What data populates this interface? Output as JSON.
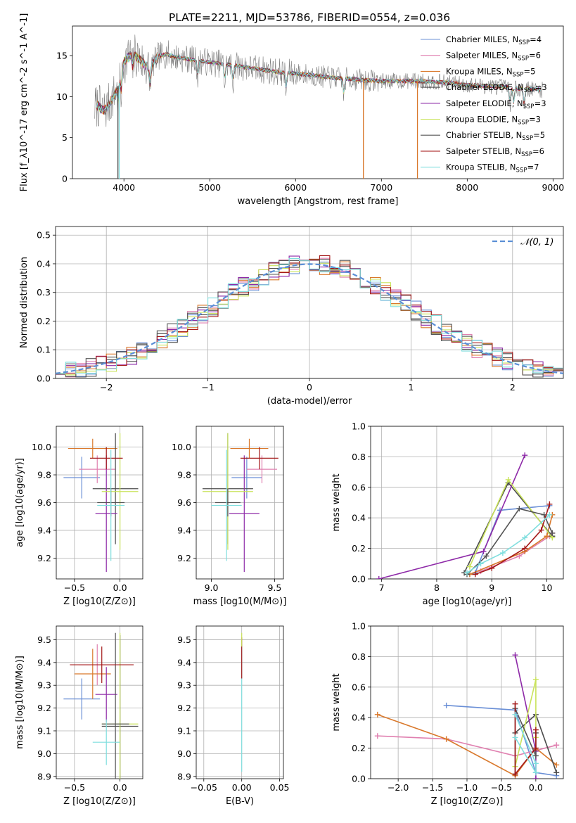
{
  "figure": {
    "title": "PLATE=2211, MJD=53786, FIBERID=0554, z=0.036"
  },
  "colors": {
    "Chabrier MILES": "#6a8fd6",
    "Salpeter MILES": "#e080b0",
    "Kroupa MILES": "#d9782b",
    "Chabrier ELODIE": "#4c4c4c",
    "Salpeter ELODIE": "#8e2aa8",
    "Kroupa ELODIE": "#c9e35a",
    "Chabrier STELIB": "#555555",
    "Salpeter STELIB": "#a41818",
    "Kroupa STELIB": "#7fdede",
    "gauss": "#5b8fd6"
  },
  "chart_data": [
    {
      "id": "spectrum",
      "type": "line",
      "xlabel": "wavelength [Angstrom, rest frame]",
      "ylabel": "Flux [f_λ10^-17 erg cm^-2 s^-1 A^-1]",
      "xlim": [
        3400,
        9120
      ],
      "ylim": [
        0,
        18.6
      ],
      "xticks": [
        4000,
        5000,
        6000,
        7000,
        8000,
        9000
      ],
      "yticks": [
        0,
        5,
        10,
        15
      ],
      "legend_position": "top-right",
      "legend": [
        {
          "name": "Chabrier MILES",
          "nssp": "4"
        },
        {
          "name": "Salpeter MILES",
          "nssp": "6"
        },
        {
          "name": "Kroupa MILES",
          "nssp": "5"
        },
        {
          "name": "Chabrier ELODIE",
          "nssp": "3"
        },
        {
          "name": "Salpeter ELODIE",
          "nssp": "3"
        },
        {
          "name": "Kroupa ELODIE",
          "nssp": "3"
        },
        {
          "name": "Chabrier STELIB",
          "nssp": "5"
        },
        {
          "name": "Salpeter STELIB",
          "nssp": "6"
        },
        {
          "name": "Kroupa STELIB",
          "nssp": "7"
        }
      ],
      "continuum": {
        "x": [
          3650,
          3700,
          3750,
          3800,
          3850,
          3900,
          3950,
          4000,
          4100,
          4200,
          4300,
          4400,
          4500,
          4600,
          4800,
          5000,
          5200,
          5400,
          5600,
          5800,
          6000,
          6200,
          6400,
          6600,
          6800,
          7000,
          7200,
          7400,
          7600,
          7800,
          8000,
          8200,
          8400,
          8600,
          8800,
          8880
        ],
        "y": [
          8.7,
          8.9,
          8.3,
          8.6,
          9.5,
          10.5,
          11.8,
          14.2,
          15.4,
          14.3,
          13.4,
          14.9,
          15.2,
          14.8,
          14.5,
          14.2,
          13.9,
          13.6,
          13.3,
          13.0,
          12.8,
          12.6,
          12.3,
          12.2,
          12.0,
          11.9,
          11.9,
          11.9,
          11.8,
          11.7,
          11.4,
          11.3,
          11.2,
          11.0,
          10.9,
          10.8
        ]
      },
      "absorption_lines": [
        3934,
        3969,
        4102,
        4305,
        4861,
        5175,
        5270,
        5890,
        6563,
        8498,
        8542,
        8662
      ],
      "dropouts": [
        {
          "x": 3930,
          "series": "Chabrier ELODIE"
        },
        {
          "x": 3945,
          "series": "Kroupa STELIB"
        },
        {
          "x": 6790,
          "series": "Kroupa MILES"
        },
        {
          "x": 7420,
          "series": "Kroupa MILES"
        }
      ]
    },
    {
      "id": "residuals",
      "type": "histogram",
      "xlabel": "(data-model)/error",
      "ylabel": "Normed distribution",
      "xlim": [
        -2.5,
        2.5
      ],
      "ylim": [
        0,
        0.53
      ],
      "xticks": [
        -2,
        -1,
        0,
        1,
        2
      ],
      "yticks": [
        0,
        0.1,
        0.2,
        0.3,
        0.4,
        0.5
      ],
      "bin_width": 0.1,
      "reference_curve": {
        "label": "𝒩(0, 1)",
        "style": "dashed"
      },
      "legend_position": "top-right"
    },
    {
      "id": "age_vs_Z",
      "type": "errorbar",
      "xlabel": "Z [log10(Z/Z⊙)]",
      "ylabel": "age  [log10(age/yr)]",
      "xlim": [
        -0.7,
        0.25
      ],
      "ylim": [
        9.05,
        10.15
      ],
      "xticks": [
        -0.5,
        0.0
      ],
      "yticks": [
        9.2,
        9.4,
        9.6,
        9.8,
        10.0
      ],
      "points": [
        {
          "series": "Chabrier MILES",
          "x": -0.42,
          "xerr": 0.2,
          "y": 9.78,
          "yerr": 0.15
        },
        {
          "series": "Salpeter MILES",
          "x": -0.25,
          "xerr": 0.2,
          "y": 9.84,
          "yerr": 0.1
        },
        {
          "series": "Kroupa MILES",
          "x": -0.3,
          "xerr": 0.27,
          "y": 9.99,
          "yerr": 0.07
        },
        {
          "series": "Chabrier ELODIE",
          "x": -0.05,
          "xerr": 0.25,
          "y": 9.7,
          "yerr": 0.4
        },
        {
          "series": "Salpeter ELODIE",
          "x": -0.15,
          "xerr": 0.12,
          "y": 9.52,
          "yerr": 0.42
        },
        {
          "series": "Kroupa ELODIE",
          "x": 0.0,
          "xerr": 0.2,
          "y": 9.68,
          "yerr": 0.42
        },
        {
          "series": "Chabrier STELIB",
          "x": -0.1,
          "xerr": 0.15,
          "y": 9.6,
          "yerr": 0.1
        },
        {
          "series": "Salpeter STELIB",
          "x": -0.15,
          "xerr": 0.18,
          "y": 9.92,
          "yerr": 0.08
        },
        {
          "series": "Kroupa STELIB",
          "x": -0.1,
          "xerr": 0.15,
          "y": 9.58,
          "yerr": 0.4
        }
      ]
    },
    {
      "id": "age_vs_mass",
      "type": "errorbar",
      "xlabel": "mass [log10(M/M⊙)]",
      "ylabel": "",
      "xlim": [
        8.88,
        9.57
      ],
      "ylim": [
        9.05,
        10.15
      ],
      "xticks": [
        9.0,
        9.5
      ],
      "yticks": [
        9.2,
        9.4,
        9.6,
        9.8,
        10.0
      ],
      "points": [
        {
          "series": "Chabrier MILES",
          "x": 9.28,
          "xerr": 0.12,
          "y": 9.78,
          "yerr": 0.15
        },
        {
          "series": "Salpeter MILES",
          "x": 9.4,
          "xerr": 0.12,
          "y": 9.84,
          "yerr": 0.1
        },
        {
          "series": "Kroupa MILES",
          "x": 9.3,
          "xerr": 0.15,
          "y": 9.99,
          "yerr": 0.07
        },
        {
          "series": "Chabrier ELODIE",
          "x": 9.13,
          "xerr": 0.2,
          "y": 9.7,
          "yerr": 0.4
        },
        {
          "series": "Salpeter ELODIE",
          "x": 9.26,
          "xerr": 0.12,
          "y": 9.52,
          "yerr": 0.42
        },
        {
          "series": "Kroupa ELODIE",
          "x": 9.13,
          "xerr": 0.2,
          "y": 9.68,
          "yerr": 0.42
        },
        {
          "series": "Chabrier STELIB",
          "x": 9.13,
          "xerr": 0.1,
          "y": 9.6,
          "yerr": 0.1
        },
        {
          "series": "Salpeter STELIB",
          "x": 9.38,
          "xerr": 0.15,
          "y": 9.92,
          "yerr": 0.08
        },
        {
          "series": "Kroupa STELIB",
          "x": 9.12,
          "xerr": 0.12,
          "y": 9.58,
          "yerr": 0.4
        }
      ]
    },
    {
      "id": "weight_vs_age",
      "type": "line",
      "xlabel": "age  [log10(age/yr)]",
      "ylabel": "mass weight",
      "xlim": [
        6.8,
        10.3
      ],
      "ylim": [
        0,
        1.0
      ],
      "xticks": [
        7,
        8,
        9,
        10
      ],
      "yticks": [
        0,
        0.2,
        0.4,
        0.6,
        0.8,
        1.0
      ],
      "series": [
        {
          "name": "Chabrier MILES",
          "x": [
            8.6,
            8.7,
            9.15,
            10.05
          ],
          "y": [
            0.03,
            0.04,
            0.45,
            0.48
          ]
        },
        {
          "name": "Salpeter MILES",
          "x": [
            8.8,
            9.5,
            10.05,
            10.1
          ],
          "y": [
            0.05,
            0.15,
            0.28,
            0.3
          ]
        },
        {
          "name": "Kroupa MILES",
          "x": [
            8.6,
            9.6,
            10.0,
            10.1
          ],
          "y": [
            0.03,
            0.18,
            0.28,
            0.42
          ]
        },
        {
          "name": "Chabrier ELODIE",
          "x": [
            8.5,
            9.3,
            10.1
          ],
          "y": [
            0.04,
            0.63,
            0.28
          ]
        },
        {
          "name": "Salpeter ELODIE",
          "x": [
            6.95,
            8.85,
            9.6
          ],
          "y": [
            0.0,
            0.18,
            0.81
          ]
        },
        {
          "name": "Kroupa ELODIE",
          "x": [
            8.6,
            9.3,
            10.1
          ],
          "y": [
            0.08,
            0.65,
            0.27
          ]
        },
        {
          "name": "Chabrier STELIB",
          "x": [
            8.55,
            8.9,
            9.5,
            9.95,
            10.1
          ],
          "y": [
            0.03,
            0.15,
            0.46,
            0.42,
            0.3
          ]
        },
        {
          "name": "Salpeter STELIB",
          "x": [
            8.7,
            9.0,
            9.6,
            9.9,
            10.05
          ],
          "y": [
            0.03,
            0.07,
            0.2,
            0.32,
            0.49
          ]
        },
        {
          "name": "Kroupa STELIB",
          "x": [
            8.55,
            8.8,
            9.2,
            9.6,
            10.05
          ],
          "y": [
            0.04,
            0.1,
            0.17,
            0.27,
            0.42
          ]
        }
      ]
    },
    {
      "id": "mass_vs_Z",
      "type": "errorbar",
      "xlabel": "Z [log10(Z/Z⊙)]",
      "ylabel": "mass [log10(M/M⊙)]",
      "xlim": [
        -0.7,
        0.25
      ],
      "ylim": [
        8.89,
        9.56
      ],
      "xticks": [
        -0.5,
        0.0
      ],
      "yticks": [
        8.9,
        9.0,
        9.1,
        9.2,
        9.3,
        9.4,
        9.5
      ],
      "points": [
        {
          "series": "Chabrier MILES",
          "x": -0.42,
          "xerr": 0.2,
          "y": 9.24,
          "yerr": 0.09
        },
        {
          "series": "Salpeter MILES",
          "x": -0.25,
          "xerr": 0.2,
          "y": 9.39,
          "yerr": 0.09
        },
        {
          "series": "Kroupa MILES",
          "x": -0.3,
          "xerr": 0.2,
          "y": 9.35,
          "yerr": 0.11
        },
        {
          "series": "Chabrier ELODIE",
          "x": 0.0,
          "xerr": 0.2,
          "y": 9.12,
          "yerr": 0.4
        },
        {
          "series": "Salpeter ELODIE",
          "x": -0.15,
          "xerr": 0.12,
          "y": 9.26,
          "yerr": 0.12
        },
        {
          "series": "Kroupa ELODIE",
          "x": 0.0,
          "xerr": 0.2,
          "y": 9.13,
          "yerr": 0.4
        },
        {
          "series": "Chabrier STELIB",
          "x": -0.05,
          "xerr": 0.15,
          "y": 9.13,
          "yerr": 0.4
        },
        {
          "series": "Salpeter STELIB",
          "x": -0.2,
          "xerr": 0.35,
          "y": 9.39,
          "yerr": 0.08
        },
        {
          "series": "Kroupa STELIB",
          "x": -0.15,
          "xerr": 0.15,
          "y": 9.05,
          "yerr": 0.1
        }
      ]
    },
    {
      "id": "mass_vs_EBV",
      "type": "errorbar",
      "xlabel": "E(B-V)",
      "ylabel": "",
      "xlim": [
        -0.06,
        0.055
      ],
      "ylim": [
        8.89,
        9.56
      ],
      "xticks": [
        -0.05,
        0.0,
        0.05
      ],
      "yticks": [
        8.9,
        9.0,
        9.1,
        9.2,
        9.3,
        9.4,
        9.5
      ],
      "points": [
        {
          "series": "Kroupa STELIB",
          "x": 0.0,
          "xerr": 0.0,
          "y": 9.2,
          "yerr": 0.28
        },
        {
          "series": "Salpeter STELIB",
          "x": 0.0,
          "xerr": 0.0,
          "y": 9.42,
          "yerr": 0.09
        },
        {
          "series": "Kroupa ELODIE",
          "x": 0.0,
          "xerr": 0.0,
          "y": 9.5,
          "yerr": 0.03
        }
      ]
    },
    {
      "id": "weight_vs_Z",
      "type": "line",
      "xlabel": "Z [log10(Z/Z⊙)]",
      "ylabel": "mass weight",
      "xlim": [
        -2.4,
        0.4
      ],
      "ylim": [
        0,
        1.0
      ],
      "xticks": [
        -2.0,
        -1.5,
        -1.0,
        -0.5,
        0.0
      ],
      "yticks": [
        0,
        0.2,
        0.4,
        0.6,
        0.8,
        1.0
      ],
      "series": [
        {
          "name": "Chabrier MILES",
          "x": [
            -1.3,
            -0.3,
            0.0,
            0.3
          ],
          "y": [
            0.48,
            0.45,
            0.04,
            0.02
          ]
        },
        {
          "name": "Salpeter MILES",
          "x": [
            -2.3,
            -1.3,
            -0.3,
            0.3
          ],
          "y": [
            0.28,
            0.26,
            0.15,
            0.22
          ]
        },
        {
          "name": "Kroupa MILES",
          "x": [
            -2.3,
            -1.3,
            -0.3,
            0.0,
            0.3
          ],
          "y": [
            0.42,
            0.26,
            0.02,
            0.2,
            0.09
          ]
        },
        {
          "name": "Chabrier ELODIE",
          "x": [
            -0.3,
            0.0,
            0.3
          ],
          "y": [
            0.3,
            0.42,
            0.04
          ]
        },
        {
          "name": "Salpeter ELODIE",
          "x": [
            -0.3,
            0.0,
            0.0
          ],
          "y": [
            0.81,
            0.18,
            0.0
          ]
        },
        {
          "name": "Kroupa ELODIE",
          "x": [
            -0.3,
            0.0,
            0.0
          ],
          "y": [
            0.08,
            0.65,
            0.27
          ]
        },
        {
          "name": "Chabrier STELIB",
          "x": [
            -0.3,
            -0.3,
            0.0,
            0.0
          ],
          "y": [
            0.03,
            0.46,
            0.15,
            0.3
          ]
        },
        {
          "name": "Salpeter STELIB",
          "x": [
            -0.3,
            -0.3,
            0.0,
            0.0
          ],
          "y": [
            0.49,
            0.03,
            0.2,
            0.32
          ]
        },
        {
          "name": "Kroupa STELIB",
          "x": [
            -0.3,
            0.0,
            0.0,
            -0.3
          ],
          "y": [
            0.42,
            0.1,
            0.04,
            0.27
          ]
        }
      ]
    }
  ]
}
